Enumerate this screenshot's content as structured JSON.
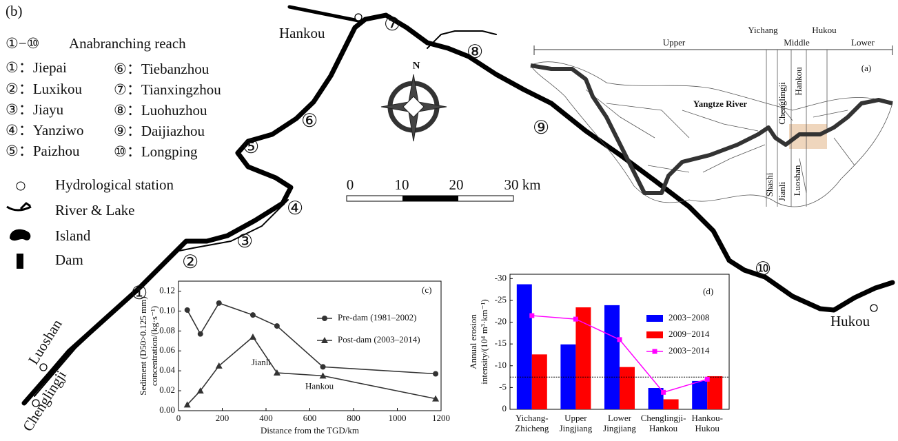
{
  "map": {
    "panel": "(b)",
    "legend_symbol": "①−⑩",
    "legend_title": "Anabranching reach",
    "reaches": [
      "①：Jiepai",
      "②：Luxikou",
      "③：Jiayu",
      "④：Yanziwo",
      "⑤：Paizhou",
      "⑥：Tiebanzhou",
      "⑦：Tianxingzhou",
      "⑧：Luohuzhou",
      "⑨：Daijiazhou",
      "⑩：Longping"
    ],
    "legend": [
      "Hydrological station",
      "River & Lake",
      "Island",
      "Dam"
    ],
    "stations": [
      "Hankou",
      "Hukou",
      "Luoshan",
      "Chenglingji"
    ],
    "reach_markers": [
      "①",
      "②",
      "③",
      "④",
      "⑤",
      "⑥",
      "⑦",
      "⑧",
      "⑨",
      "⑩"
    ],
    "north": "N",
    "scale": [
      "0",
      "10",
      "20",
      "30 km"
    ]
  },
  "inset": {
    "panel": "(a)",
    "reaches": [
      "Upper",
      "Middle",
      "Lower"
    ],
    "bounds": [
      "Yichang",
      "Hukou"
    ],
    "river": "Yangtze River",
    "places": [
      "Chenglingji",
      "Hankou",
      "Shashi",
      "Jianli",
      "Luoshan"
    ]
  },
  "chart_data": [
    {
      "type": "line",
      "panel_label": "(c)",
      "xlabel": "Distance from the TGD/km",
      "ylabel": [
        "Sediment (D50>0.125 mm)",
        "concentration/(kg·s⁻¹)"
      ],
      "x": [
        40,
        100,
        185,
        340,
        450,
        660,
        1175
      ],
      "series": [
        {
          "name": "Pre-dam (1981–2002)",
          "color": "#333333",
          "marker": "circle",
          "values": [
            0.101,
            0.077,
            0.108,
            0.096,
            0.085,
            0.044,
            0.037
          ]
        },
        {
          "name": "Post-dam (2003–2014)",
          "color": "#333333",
          "marker": "triangle",
          "values": [
            0.006,
            0.02,
            0.045,
            0.074,
            0.038,
            0.035,
            0.012
          ]
        }
      ],
      "annotations": [
        "Jianli",
        "Hankou"
      ],
      "xlim": [
        0,
        1200
      ],
      "xticks": [
        0,
        200,
        400,
        600,
        800,
        1000,
        1200
      ],
      "ylim": [
        0,
        0.13
      ],
      "yticks": [
        {
          "value": 0,
          "label": "0.00"
        },
        {
          "value": 0.02,
          "label": "0.02"
        },
        {
          "value": 0.04,
          "label": "0.04"
        },
        {
          "value": 0.06,
          "label": "0.06"
        },
        {
          "value": 0.08,
          "label": "0.08"
        },
        {
          "value": 0.1,
          "label": "0.10"
        },
        {
          "value": 0.12,
          "label": "0.12"
        }
      ],
      "legend": "upper right"
    },
    {
      "type": "bar",
      "panel_label": "(d)",
      "ylabel": [
        "Annual erosion",
        "intensity/(10⁴ m³·km⁻¹)"
      ],
      "categories": [
        "Yichang-\nZhicheng",
        "Upper\nJingjiang",
        "Lower\nJingjiang",
        "Chenglingji-\nHankou",
        "Hankou-\nHukou"
      ],
      "series": [
        {
          "name": "2003−2008",
          "color": "#0000ff",
          "values": [
            -28.7,
            -14.9,
            -23.9,
            -4.9,
            -6.5
          ]
        },
        {
          "name": "2009−2014",
          "color": "#ff0000",
          "values": [
            -12.6,
            -23.4,
            -9.7,
            -2.3,
            -7.6
          ]
        },
        {
          "name": "2003−2014",
          "color": "#ff00ff",
          "kind": "line",
          "values": [
            -21.5,
            -20.7,
            -16.0,
            -3.9,
            -6.9
          ]
        }
      ],
      "hline": -7.4,
      "ylim": [
        0,
        -31
      ],
      "yticks": [
        0,
        -5,
        -10,
        -15,
        -20,
        -25,
        -30
      ],
      "legend": "upper right"
    }
  ]
}
